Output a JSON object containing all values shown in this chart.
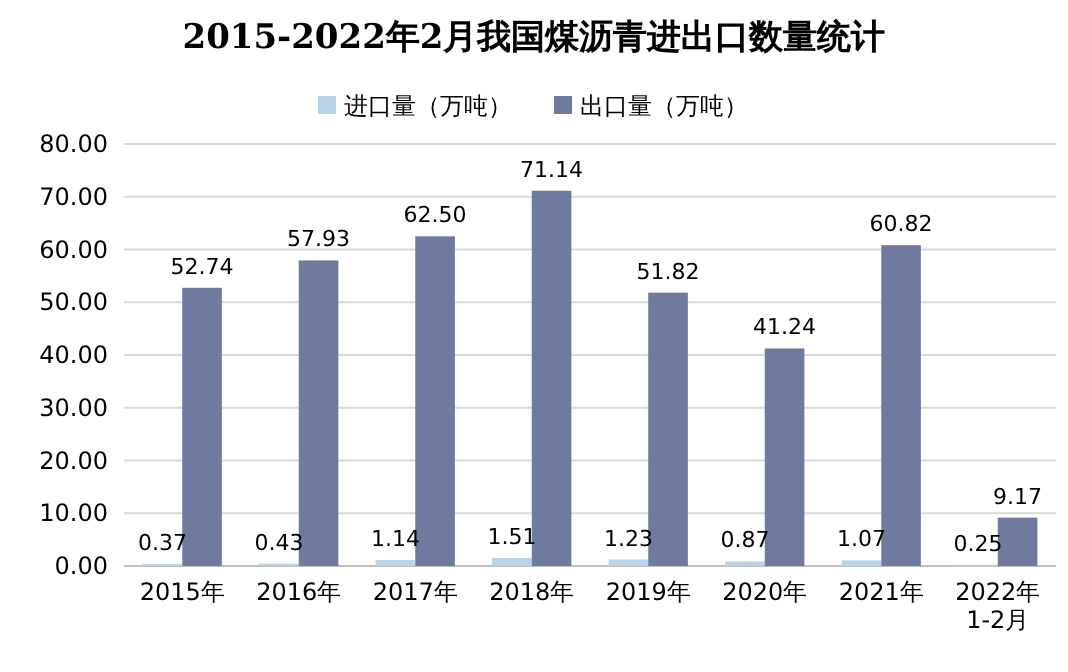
{
  "chart_data": {
    "type": "bar",
    "title": "2015-2022年2月我国煤沥青进出口数量统计",
    "categories": [
      "2015年",
      "2016年",
      "2017年",
      "2018年",
      "2019年",
      "2020年",
      "2021年",
      "2022年1-2月"
    ],
    "series": [
      {
        "name": "进口量（万吨）",
        "color": "#b7d4ea",
        "values": [
          0.37,
          0.43,
          1.14,
          1.51,
          1.23,
          0.87,
          1.07,
          0.25
        ],
        "value_labels": [
          "0.37",
          "0.43",
          "1.14",
          "1.51",
          "1.23",
          "0.87",
          "1.07",
          "0.25"
        ]
      },
      {
        "name": "出口量（万吨）",
        "color": "#6e7b9e",
        "values": [
          52.74,
          57.93,
          62.5,
          71.14,
          51.82,
          41.24,
          60.82,
          9.17
        ],
        "value_labels": [
          "52.74",
          "57.93",
          "62.50",
          "71.14",
          "51.82",
          "41.24",
          "60.82",
          "9.17"
        ]
      }
    ],
    "ylim": [
      0,
      80
    ],
    "yticks": [
      {
        "value": 0,
        "label": "0.00"
      },
      {
        "value": 10,
        "label": "10.00"
      },
      {
        "value": 20,
        "label": "20.00"
      },
      {
        "value": 30,
        "label": "30.00"
      },
      {
        "value": 40,
        "label": "40.00"
      },
      {
        "value": 50,
        "label": "50.00"
      },
      {
        "value": 60,
        "label": "60.00"
      },
      {
        "value": 70,
        "label": "70.00"
      },
      {
        "value": 80,
        "label": "80.00"
      }
    ],
    "grid": "y",
    "legend": "top"
  }
}
